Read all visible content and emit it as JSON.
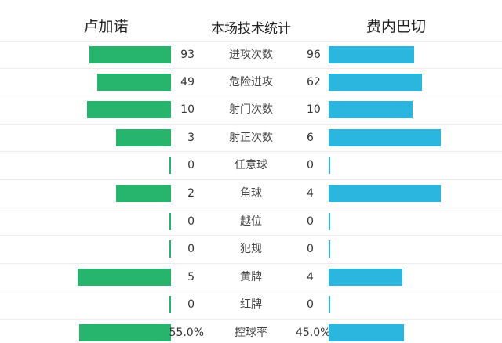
{
  "header": {
    "home_team": "卢加诺",
    "title": "本场技术统计",
    "away_team": "费内巴切"
  },
  "colors": {
    "home_bar": "#27b56e",
    "away_bar": "#2bb6df"
  },
  "stats": [
    {
      "label": "进攻次数",
      "home": "93",
      "away": "96",
      "home_frac": 0.49,
      "away_frac": 0.51
    },
    {
      "label": "危险进攻",
      "home": "49",
      "away": "62",
      "home_frac": 0.44,
      "away_frac": 0.56
    },
    {
      "label": "射门次数",
      "home": "10",
      "away": "10",
      "home_frac": 0.5,
      "away_frac": 0.5
    },
    {
      "label": "射正次数",
      "home": "3",
      "away": "6",
      "home_frac": 0.33,
      "away_frac": 0.67
    },
    {
      "label": "任意球",
      "home": "0",
      "away": "0",
      "home_frac": 0,
      "away_frac": 0
    },
    {
      "label": "角球",
      "home": "2",
      "away": "4",
      "home_frac": 0.33,
      "away_frac": 0.67
    },
    {
      "label": "越位",
      "home": "0",
      "away": "0",
      "home_frac": 0,
      "away_frac": 0
    },
    {
      "label": "犯规",
      "home": "0",
      "away": "0",
      "home_frac": 0,
      "away_frac": 0
    },
    {
      "label": "黄牌",
      "home": "5",
      "away": "4",
      "home_frac": 0.56,
      "away_frac": 0.44
    },
    {
      "label": "红牌",
      "home": "0",
      "away": "0",
      "home_frac": 0,
      "away_frac": 0
    },
    {
      "label": "控球率",
      "home": "55.0%",
      "away": "45.0%",
      "home_frac": 0.55,
      "away_frac": 0.45
    }
  ]
}
